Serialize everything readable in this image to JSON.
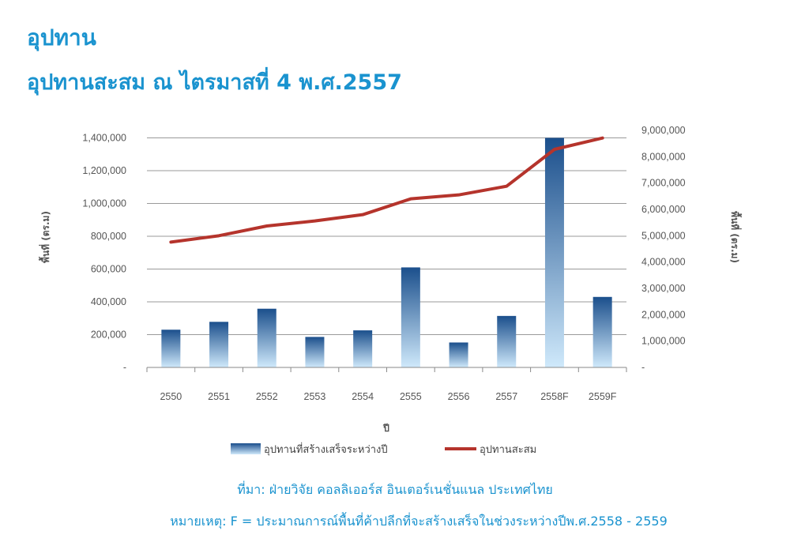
{
  "header": {
    "title": "อุปทาน",
    "subtitle": "อุปทานสะสม ณ ไตรมาสที่ 4 พ.ศ.2557"
  },
  "chart_data": {
    "type": "bar",
    "categories": [
      "2550",
      "2551",
      "2552",
      "2553",
      "2554",
      "2555",
      "2556",
      "2557",
      "2558F",
      "2559F"
    ],
    "xlabel": "ปี",
    "ylabel": "พื้นที่ (ตร.ม)",
    "y2label": "พื้นที่ (ตร.ม)",
    "ylim": [
      0,
      1400000
    ],
    "y2lim": [
      0,
      9000000
    ],
    "yticks": [
      "-",
      "200,000",
      "400,000",
      "600,000",
      "800,000",
      "1,000,000",
      "1,200,000",
      "1,400,000"
    ],
    "y2ticks": [
      "-",
      "1,000,000",
      "2,000,000",
      "3,000,000",
      "4,000,000",
      "5,000,000",
      "6,000,000",
      "7,000,000",
      "8,000,000",
      "9,000,000"
    ],
    "grid": true,
    "legend_position": "bottom",
    "series": [
      {
        "name": "อุปทานที่สร้างเสร็จระหว่างปี",
        "type": "bar",
        "axis": "left",
        "color": "#1f5f9e",
        "values": [
          230000,
          278000,
          358000,
          186000,
          226000,
          610000,
          152000,
          314000,
          1400000,
          430000
        ]
      },
      {
        "name": "อุปทานสะสม",
        "type": "line",
        "axis": "right",
        "color": "#b5342c",
        "values": [
          4760000,
          5000000,
          5370000,
          5560000,
          5800000,
          6400000,
          6550000,
          6880000,
          8280000,
          8710000
        ]
      }
    ]
  },
  "footer": {
    "source": "ที่มา: ฝ่ายวิจัย คอลลิเออร์ส อินเตอร์เนชั่นแนล ประเทศไทย",
    "note": "หมายเหตุ: F = ประมาณการณ์พื้นที่ค้าปลีกที่จะสร้างเสร็จในช่วงระหว่างปีพ.ศ.2558 - 2559"
  }
}
